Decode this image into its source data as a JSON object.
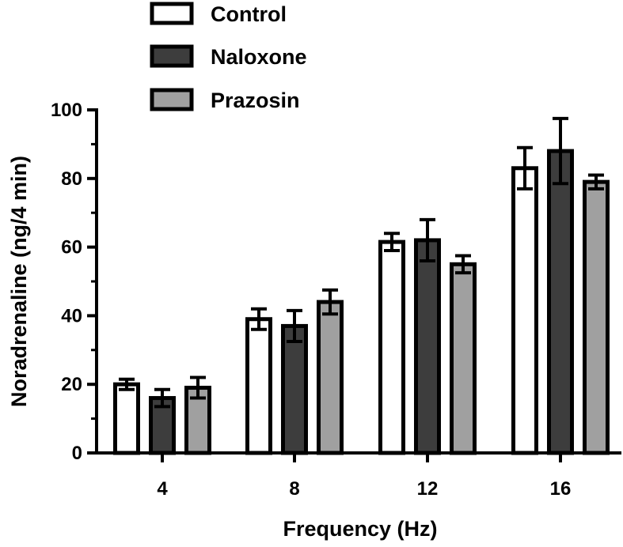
{
  "chart_data": {
    "type": "bar",
    "title": "",
    "xlabel": "Frequency (Hz)",
    "ylabel": "Noradrenaline (ng/4 min)",
    "categories": [
      "4",
      "8",
      "12",
      "16"
    ],
    "ylim": [
      0,
      100
    ],
    "yticks": [
      0,
      20,
      40,
      60,
      80,
      100
    ],
    "grid": false,
    "legend_position": "top-left",
    "series": [
      {
        "name": "Control",
        "color": "#ffffff",
        "values": [
          20,
          39,
          61.5,
          83
        ],
        "errors": [
          1.5,
          3,
          2.5,
          6
        ]
      },
      {
        "name": "Naloxone",
        "color": "#3d3d3d",
        "values": [
          16,
          37,
          62,
          88
        ],
        "errors": [
          2.5,
          4.5,
          6,
          9.5
        ]
      },
      {
        "name": "Prazosin",
        "color": "#a0a0a0",
        "values": [
          19,
          44,
          55,
          79
        ],
        "errors": [
          3,
          3.5,
          2.5,
          2
        ]
      }
    ]
  }
}
